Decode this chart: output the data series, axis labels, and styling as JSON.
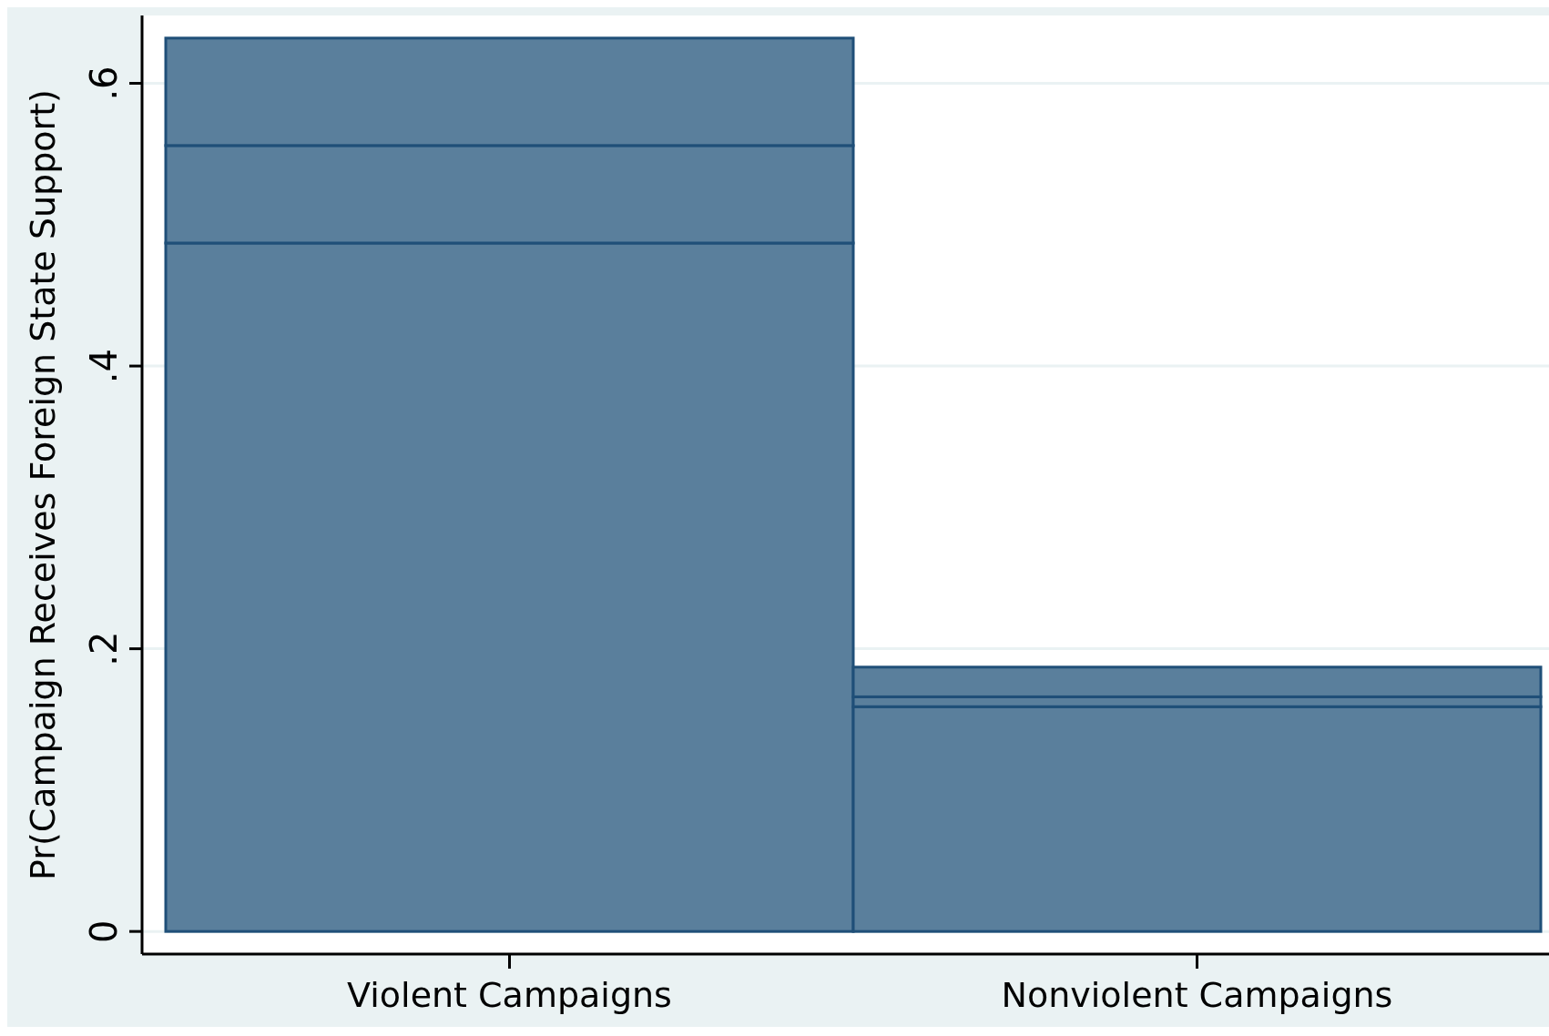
{
  "chart_data": {
    "type": "bar",
    "ylabel": "Pr(Campaign Receives Foreign State Support)",
    "categories": [
      "Violent Campaigns",
      "Nonviolent Campaigns"
    ],
    "stacked": true,
    "series": [
      {
        "color": "#5a7f9c",
        "values": [
          0.487,
          0.159
        ]
      },
      {
        "color": "#5a7f9c",
        "values": [
          0.069,
          0.007
        ]
      },
      {
        "color": "#5a7f9c",
        "values": [
          0.076,
          0.021
        ]
      }
    ],
    "ylim": [
      -0.016,
      0.648
    ],
    "yticks": [
      0,
      {
        "value": 0.2,
        "label": ".2"
      },
      {
        "value": 0.4,
        "label": ".4"
      },
      {
        "value": 0.6,
        "label": ".6"
      }
    ],
    "grid": "y"
  }
}
